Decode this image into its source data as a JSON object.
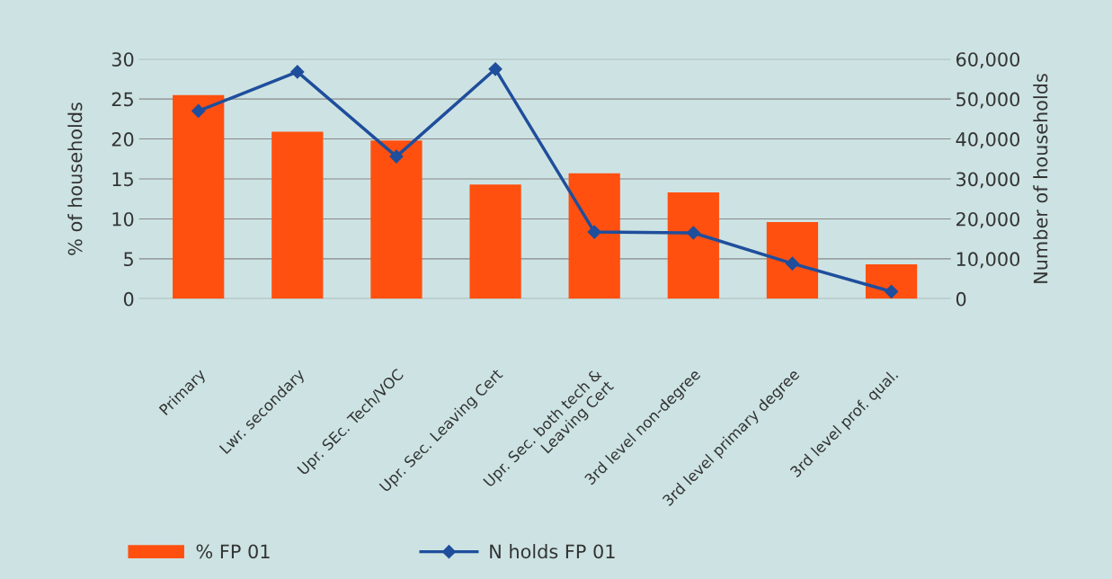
{
  "chart_data": {
    "type": "bar",
    "ylabel": "% of households",
    "y2label": "Number of households",
    "categories": [
      "Primary",
      "Lwr. secondary",
      "Upr. SEc. Tech/VOC",
      "Upr. Sec. Leaving Cert",
      "Upr. Sec. both tech &\nLeaving Cert",
      "3rd level non-degree",
      "3rd level primary degree",
      "3rd level prof. qual."
    ],
    "series": [
      {
        "name": "% FP 01",
        "color": "#ff5010",
        "values": [
          25.5,
          20.9,
          19.8,
          14.3,
          15.7,
          13.3,
          9.6,
          4.3
        ]
      },
      {
        "name": "N holds FP 01",
        "type": "line",
        "axis": "y2",
        "color": "#1f4e9c",
        "marker": "diamond",
        "values": [
          47000,
          56800,
          35600,
          57500,
          16700,
          16500,
          8800,
          1800
        ]
      }
    ],
    "ylim": [
      0,
      30
    ],
    "yticks": [
      0,
      5,
      10,
      15,
      20,
      25,
      30
    ],
    "y2lim": [
      0,
      60000
    ],
    "y2ticks": [
      {
        "value": 0,
        "label": "0"
      },
      {
        "value": 10000,
        "label": "10,000"
      },
      {
        "value": 20000,
        "label": "20,000"
      },
      {
        "value": 30000,
        "label": "30,000"
      },
      {
        "value": 40000,
        "label": "40,000"
      },
      {
        "value": 50000,
        "label": "50,000"
      },
      {
        "value": 60000,
        "label": "60,000"
      }
    ],
    "grid": "y",
    "legend": "bottom"
  }
}
